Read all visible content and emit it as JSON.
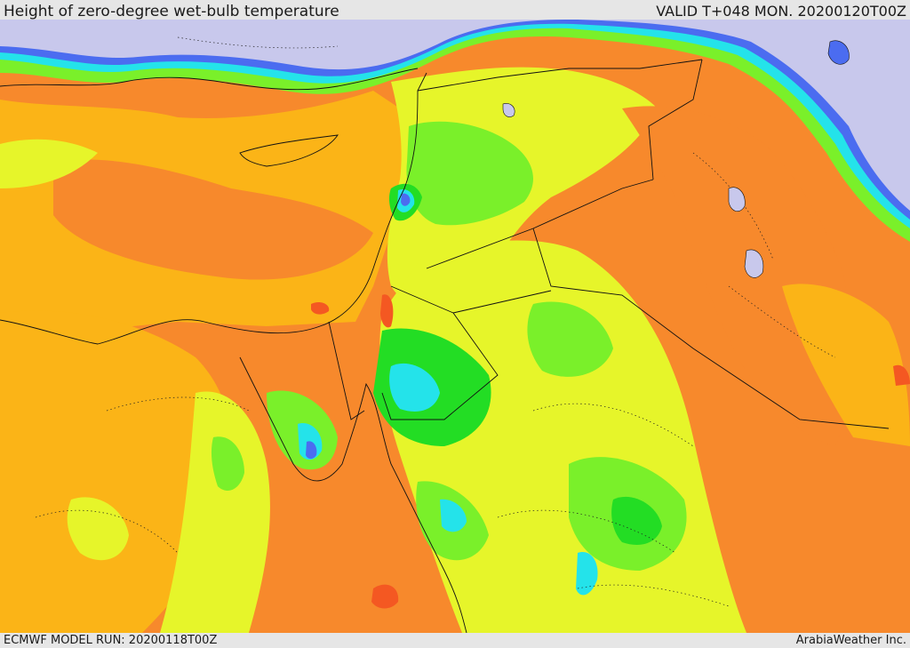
{
  "header": {
    "title": "Height of zero-degree wet-bulb temperature",
    "valid": "VALID T+048 MON. 20200120T00Z"
  },
  "footer": {
    "model_run": "ECMWF MODEL RUN: 20200118T00Z",
    "credit": "ArabiaWeather Inc."
  },
  "palette": {
    "sea_lavender": "#c8c8ec",
    "blue": "#4b6cf0",
    "cyan": "#24e3ea",
    "green": "#23dd24",
    "light_green": "#7af02a",
    "yellow_green": "#e6f52a",
    "orange_yellow": "#fbb417",
    "orange": "#f7892c",
    "red_orange": "#f45822"
  }
}
